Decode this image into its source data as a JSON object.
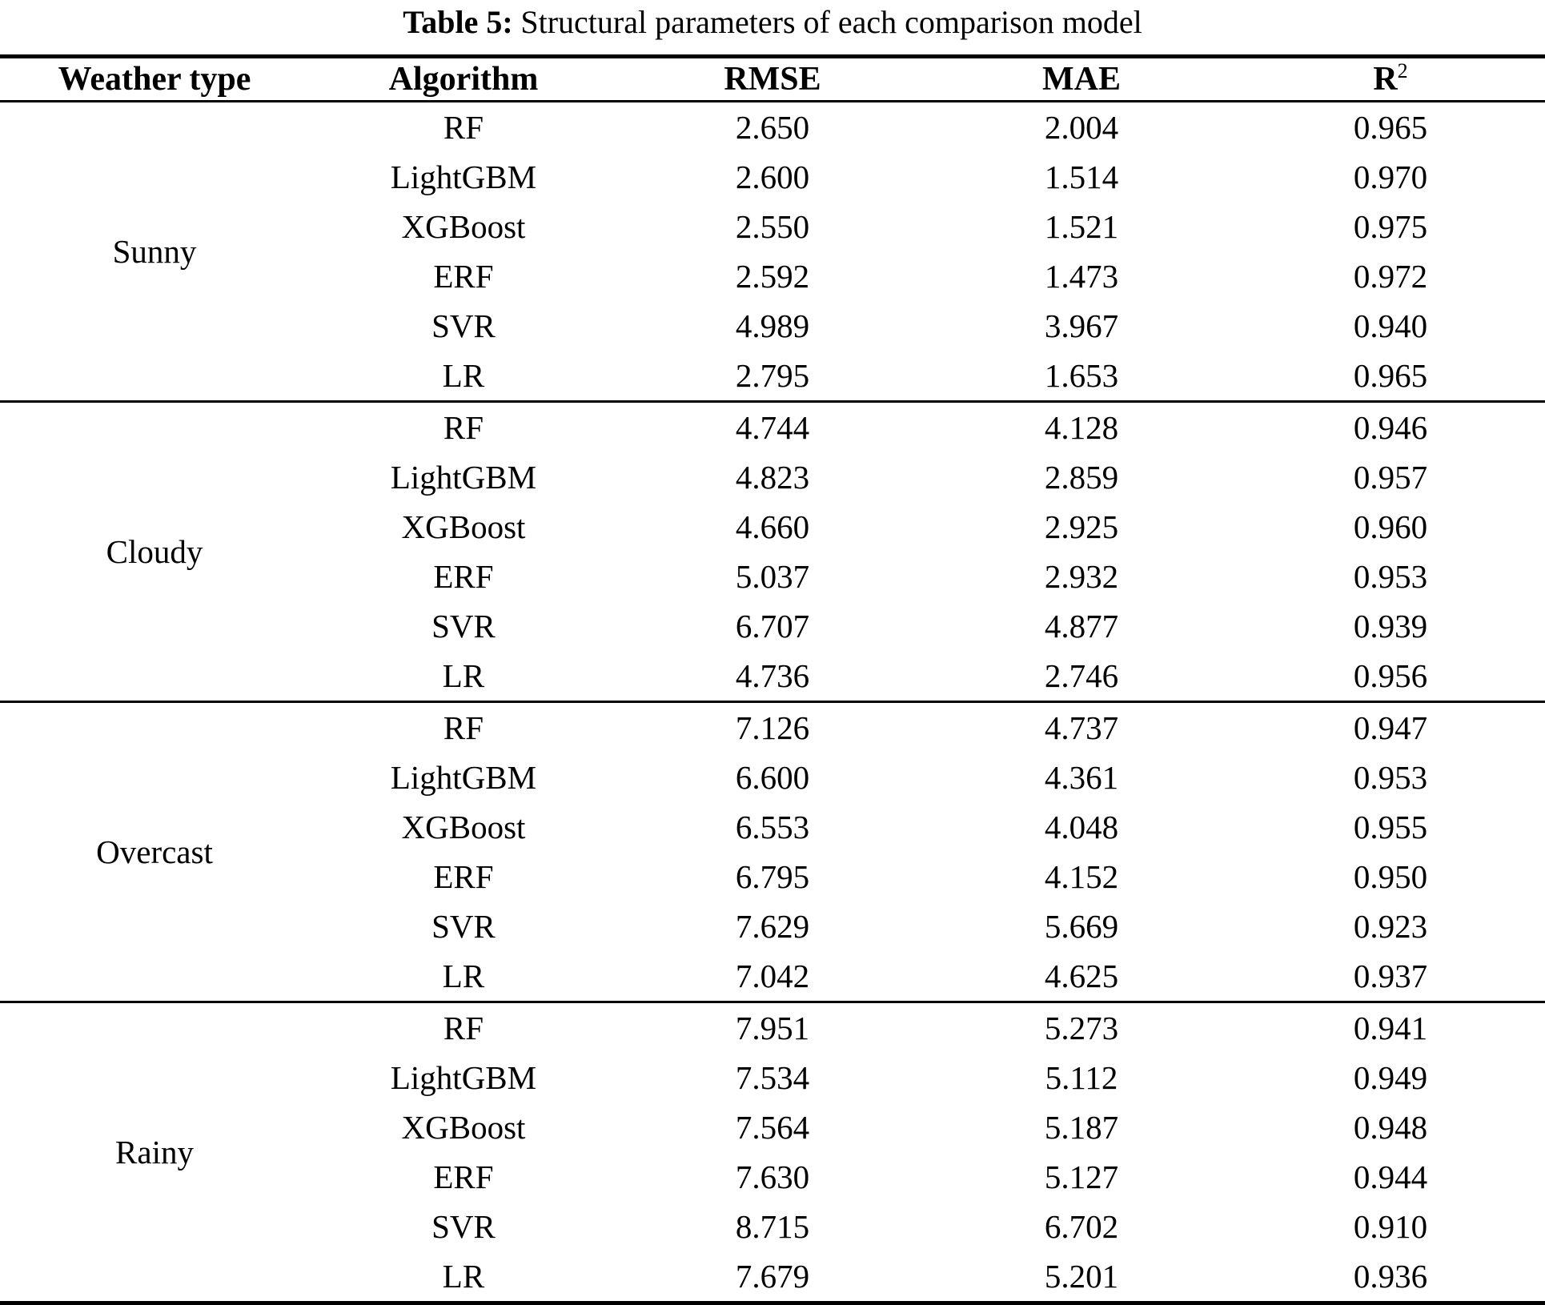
{
  "caption": {
    "label": "Table 5:",
    "text": "Structural parameters of each comparison model"
  },
  "table": {
    "headers": {
      "weather": "Weather type",
      "algorithm": "Algorithm",
      "rmse": "RMSE",
      "mae": "MAE",
      "r2_base": "R",
      "r2_sup": "2"
    },
    "sections": [
      {
        "weather": "Sunny",
        "rows": [
          {
            "algorithm": "RF",
            "rmse": "2.650",
            "mae": "2.004",
            "r2": "0.965"
          },
          {
            "algorithm": "LightGBM",
            "rmse": "2.600",
            "mae": "1.514",
            "r2": "0.970"
          },
          {
            "algorithm": "XGBoost",
            "rmse": "2.550",
            "mae": "1.521",
            "r2": "0.975"
          },
          {
            "algorithm": "ERF",
            "rmse": "2.592",
            "mae": "1.473",
            "r2": "0.972"
          },
          {
            "algorithm": "SVR",
            "rmse": "4.989",
            "mae": "3.967",
            "r2": "0.940"
          },
          {
            "algorithm": "LR",
            "rmse": "2.795",
            "mae": "1.653",
            "r2": "0.965"
          }
        ]
      },
      {
        "weather": "Cloudy",
        "rows": [
          {
            "algorithm": "RF",
            "rmse": "4.744",
            "mae": "4.128",
            "r2": "0.946"
          },
          {
            "algorithm": "LightGBM",
            "rmse": "4.823",
            "mae": "2.859",
            "r2": "0.957"
          },
          {
            "algorithm": "XGBoost",
            "rmse": "4.660",
            "mae": "2.925",
            "r2": "0.960"
          },
          {
            "algorithm": "ERF",
            "rmse": "5.037",
            "mae": "2.932",
            "r2": "0.953"
          },
          {
            "algorithm": "SVR",
            "rmse": "6.707",
            "mae": "4.877",
            "r2": "0.939"
          },
          {
            "algorithm": "LR",
            "rmse": "4.736",
            "mae": "2.746",
            "r2": "0.956"
          }
        ]
      },
      {
        "weather": "Overcast",
        "rows": [
          {
            "algorithm": "RF",
            "rmse": "7.126",
            "mae": "4.737",
            "r2": "0.947"
          },
          {
            "algorithm": "LightGBM",
            "rmse": "6.600",
            "mae": "4.361",
            "r2": "0.953"
          },
          {
            "algorithm": "XGBoost",
            "rmse": "6.553",
            "mae": "4.048",
            "r2": "0.955"
          },
          {
            "algorithm": "ERF",
            "rmse": "6.795",
            "mae": "4.152",
            "r2": "0.950"
          },
          {
            "algorithm": "SVR",
            "rmse": "7.629",
            "mae": "5.669",
            "r2": "0.923"
          },
          {
            "algorithm": "LR",
            "rmse": "7.042",
            "mae": "4.625",
            "r2": "0.937"
          }
        ]
      },
      {
        "weather": "Rainy",
        "rows": [
          {
            "algorithm": "RF",
            "rmse": "7.951",
            "mae": "5.273",
            "r2": "0.941"
          },
          {
            "algorithm": "LightGBM",
            "rmse": "7.534",
            "mae": "5.112",
            "r2": "0.949"
          },
          {
            "algorithm": "XGBoost",
            "rmse": "7.564",
            "mae": "5.187",
            "r2": "0.948"
          },
          {
            "algorithm": "ERF",
            "rmse": "7.630",
            "mae": "5.127",
            "r2": "0.944"
          },
          {
            "algorithm": "SVR",
            "rmse": "8.715",
            "mae": "6.702",
            "r2": "0.910"
          },
          {
            "algorithm": "LR",
            "rmse": "7.679",
            "mae": "5.201",
            "r2": "0.936"
          }
        ]
      }
    ]
  },
  "chart_data": {
    "type": "table",
    "title": "Table 5: Structural parameters of each comparison model",
    "columns": [
      "Weather type",
      "Algorithm",
      "RMSE",
      "MAE",
      "R2"
    ],
    "rows": [
      [
        "Sunny",
        "RF",
        "2.650",
        "2.004",
        "0.965"
      ],
      [
        "Sunny",
        "LightGBM",
        "2.600",
        "1.514",
        "0.970"
      ],
      [
        "Sunny",
        "XGBoost",
        "2.550",
        "1.521",
        "0.975"
      ],
      [
        "Sunny",
        "ERF",
        "2.592",
        "1.473",
        "0.972"
      ],
      [
        "Sunny",
        "SVR",
        "4.989",
        "3.967",
        "0.940"
      ],
      [
        "Sunny",
        "LR",
        "2.795",
        "1.653",
        "0.965"
      ],
      [
        "Cloudy",
        "RF",
        "4.744",
        "4.128",
        "0.946"
      ],
      [
        "Cloudy",
        "LightGBM",
        "4.823",
        "2.859",
        "0.957"
      ],
      [
        "Cloudy",
        "XGBoost",
        "4.660",
        "2.925",
        "0.960"
      ],
      [
        "Cloudy",
        "ERF",
        "5.037",
        "2.932",
        "0.953"
      ],
      [
        "Cloudy",
        "SVR",
        "6.707",
        "4.877",
        "0.939"
      ],
      [
        "Cloudy",
        "LR",
        "4.736",
        "2.746",
        "0.956"
      ],
      [
        "Overcast",
        "RF",
        "7.126",
        "4.737",
        "0.947"
      ],
      [
        "Overcast",
        "LightGBM",
        "6.600",
        "4.361",
        "0.953"
      ],
      [
        "Overcast",
        "XGBoost",
        "6.553",
        "4.048",
        "0.955"
      ],
      [
        "Overcast",
        "ERF",
        "6.795",
        "4.152",
        "0.950"
      ],
      [
        "Overcast",
        "SVR",
        "7.629",
        "5.669",
        "0.923"
      ],
      [
        "Overcast",
        "LR",
        "7.042",
        "4.625",
        "0.937"
      ],
      [
        "Rainy",
        "RF",
        "7.951",
        "5.273",
        "0.941"
      ],
      [
        "Rainy",
        "LightGBM",
        "7.534",
        "5.112",
        "0.949"
      ],
      [
        "Rainy",
        "XGBoost",
        "7.564",
        "5.187",
        "0.948"
      ],
      [
        "Rainy",
        "ERF",
        "7.630",
        "5.127",
        "0.944"
      ],
      [
        "Rainy",
        "SVR",
        "8.715",
        "6.702",
        "0.910"
      ],
      [
        "Rainy",
        "LR",
        "7.679",
        "5.201",
        "0.936"
      ]
    ]
  }
}
